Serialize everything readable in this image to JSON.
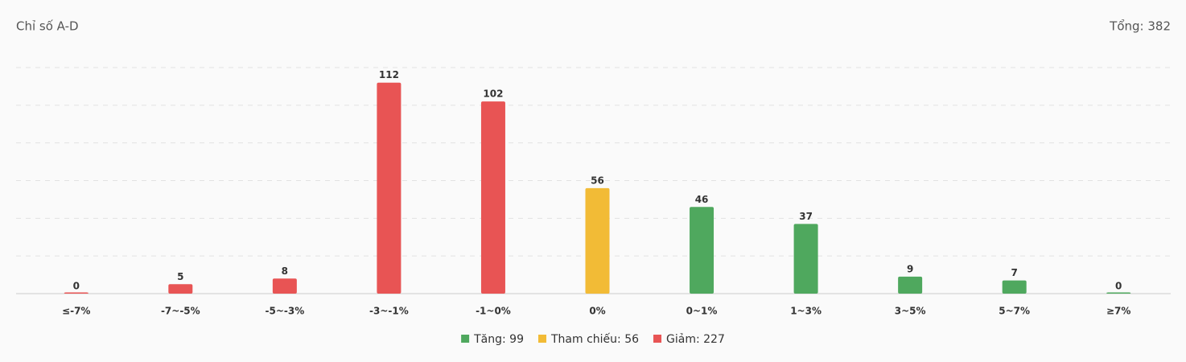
{
  "chart_data": {
    "type": "bar",
    "title": "Chỉ số A-D",
    "total_label": "Tổng: 382",
    "categories": [
      "≤-7%",
      "-7~-5%",
      "-5~-3%",
      "-3~-1%",
      "-1~0%",
      "0%",
      "0~1%",
      "1~3%",
      "3~5%",
      "5~7%",
      "≥7%"
    ],
    "values": [
      0,
      5,
      8,
      112,
      102,
      56,
      46,
      37,
      9,
      7,
      0
    ],
    "colors": [
      "#e85454",
      "#e85454",
      "#e85454",
      "#e85454",
      "#e85454",
      "#f2bb36",
      "#4fa85e",
      "#4fa85e",
      "#4fa85e",
      "#4fa85e",
      "#4fa85e"
    ],
    "ylim": [
      0,
      120
    ],
    "yticks": [
      0,
      20,
      40,
      60,
      80,
      100,
      120
    ],
    "grid": true,
    "legend": [
      {
        "label": "Tăng: 99",
        "color": "#4fa85e"
      },
      {
        "label": "Tham chiếu: 56",
        "color": "#f2bb36"
      },
      {
        "label": "Giảm: 227",
        "color": "#e85454"
      }
    ]
  }
}
